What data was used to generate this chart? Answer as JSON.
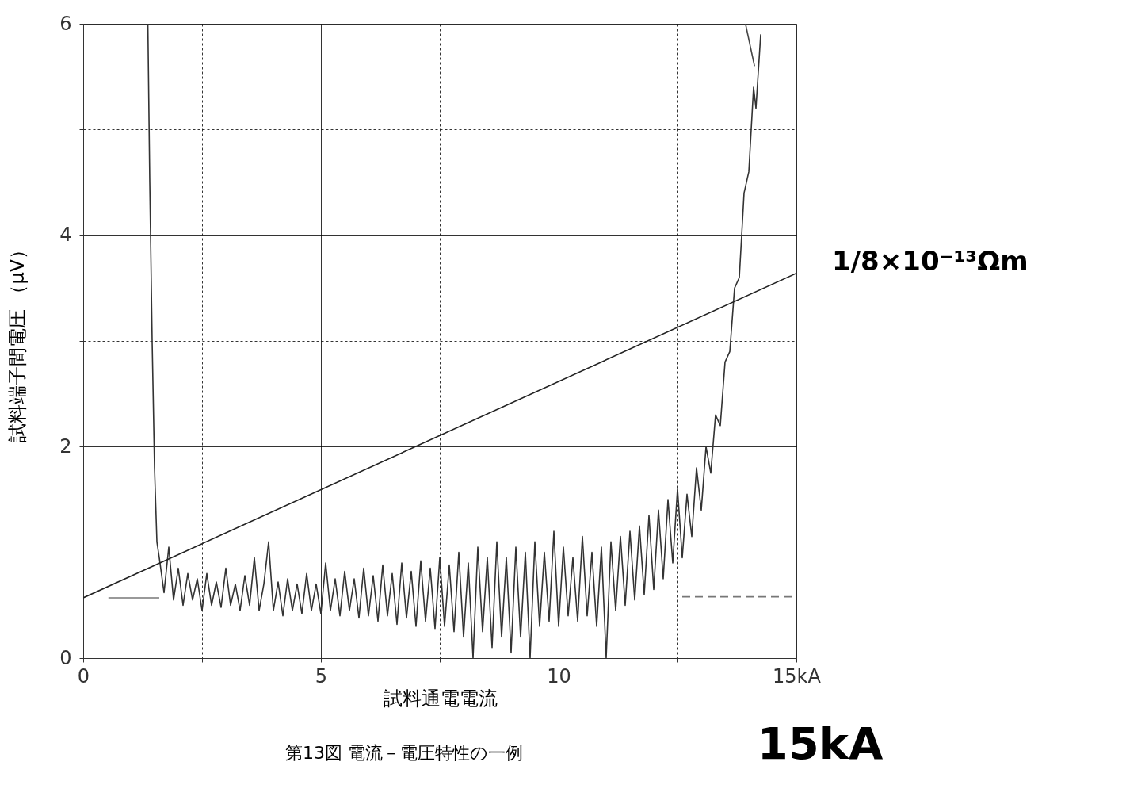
{
  "chart_data": {
    "type": "line",
    "xlabel": "試料通電電流",
    "ylabel": "試料端子間電圧 （μV）",
    "xlim": [
      0,
      15
    ],
    "ylim": [
      0,
      6
    ],
    "xticks": [
      0,
      {
        "value": 2.5,
        "label": null
      },
      5,
      {
        "value": 7.5,
        "label": null
      },
      10,
      {
        "value": 12.5,
        "label": null
      },
      {
        "value": 15,
        "label": "15kA"
      }
    ],
    "yticks": [
      0,
      {
        "value": 1,
        "label": null
      },
      2,
      {
        "value": 3,
        "label": null
      },
      4,
      {
        "value": 5,
        "label": null
      },
      6
    ],
    "grid": true,
    "marker": "none",
    "series": [
      {
        "color": "#333333",
        "line_style": "solid",
        "x": [
          1.36,
          1.4,
          1.45,
          1.5,
          1.55,
          1.6,
          1.7,
          1.8,
          1.9,
          2.0,
          2.1,
          2.2,
          2.3,
          2.4,
          2.5,
          2.6,
          2.7,
          2.8,
          2.9,
          3.0,
          3.1,
          3.2,
          3.3,
          3.4,
          3.5,
          3.6,
          3.7,
          3.8,
          3.9,
          4.0,
          4.1,
          4.2,
          4.3,
          4.4,
          4.5,
          4.6,
          4.7,
          4.8,
          4.9,
          5.0,
          5.1,
          5.2,
          5.3,
          5.4,
          5.5,
          5.6,
          5.7,
          5.8,
          5.9,
          6.0,
          6.1,
          6.2,
          6.3,
          6.4,
          6.5,
          6.6,
          6.7,
          6.8,
          6.9,
          7.0,
          7.1,
          7.2,
          7.3,
          7.4,
          7.5,
          7.6,
          7.7,
          7.8,
          7.9,
          8.0,
          8.1,
          8.2,
          8.3,
          8.4,
          8.5,
          8.6,
          8.7,
          8.8,
          8.9,
          9.0,
          9.1,
          9.2,
          9.3,
          9.4,
          9.5,
          9.6,
          9.7,
          9.8,
          9.9,
          10.0,
          10.1,
          10.2,
          10.3,
          10.4,
          10.5,
          10.6,
          10.7,
          10.8,
          10.9,
          11.0,
          11.1,
          11.2,
          11.3,
          11.4,
          11.5,
          11.6,
          11.7,
          11.8,
          11.9,
          12.0,
          12.1,
          12.2,
          12.3,
          12.4,
          12.5,
          12.6,
          12.7,
          12.8,
          12.9,
          13.0,
          13.1,
          13.2,
          13.3,
          13.4,
          13.5,
          13.6,
          13.7,
          13.8,
          13.9,
          14.0,
          14.1,
          14.15,
          14.25
        ],
        "values": [
          6,
          4.5,
          3.0,
          1.8,
          1.1,
          0.95,
          0.62,
          1.05,
          0.55,
          0.85,
          0.5,
          0.8,
          0.55,
          0.75,
          0.45,
          0.8,
          0.5,
          0.72,
          0.48,
          0.85,
          0.5,
          0.7,
          0.45,
          0.78,
          0.5,
          0.95,
          0.45,
          0.7,
          1.1,
          0.45,
          0.72,
          0.4,
          0.75,
          0.45,
          0.7,
          0.42,
          0.8,
          0.45,
          0.7,
          0.42,
          0.9,
          0.45,
          0.75,
          0.4,
          0.82,
          0.45,
          0.75,
          0.38,
          0.85,
          0.4,
          0.78,
          0.35,
          0.88,
          0.4,
          0.8,
          0.32,
          0.9,
          0.38,
          0.82,
          0.3,
          0.92,
          0.35,
          0.85,
          0.28,
          0.95,
          0.3,
          0.88,
          0.25,
          1.0,
          0.2,
          0.9,
          0.0,
          1.05,
          0.25,
          0.95,
          0.1,
          1.1,
          0.2,
          0.95,
          0.05,
          1.05,
          0.2,
          1.0,
          0.0,
          1.1,
          0.3,
          1.0,
          0.35,
          1.2,
          0.3,
          1.05,
          0.4,
          0.95,
          0.35,
          1.15,
          0.4,
          1.0,
          0.3,
          1.05,
          0.0,
          1.1,
          0.45,
          1.15,
          0.5,
          1.2,
          0.55,
          1.25,
          0.6,
          1.35,
          0.65,
          1.4,
          0.75,
          1.5,
          0.9,
          1.6,
          0.95,
          1.55,
          1.15,
          1.8,
          1.4,
          2.0,
          1.75,
          2.3,
          2.2,
          2.8,
          2.9,
          3.5,
          3.6,
          4.4,
          4.6,
          5.4,
          5.2,
          5.9
        ]
      },
      {
        "color": "#444444",
        "line_style": "solid",
        "x": [
          13.93,
          14.12
        ],
        "values": [
          6,
          5.6
        ]
      },
      {
        "color": "#777777",
        "line_style": "solid",
        "x": [
          0.53,
          1.6
        ],
        "values": [
          0.57,
          0.57
        ]
      },
      {
        "color": "#777777",
        "line_style": "dashed",
        "x": [
          12.6,
          15
        ],
        "values": [
          0.58,
          0.58
        ]
      },
      {
        "color": "#222222",
        "line_style": "solid",
        "x": [
          0,
          15
        ],
        "values": [
          0.57,
          3.64
        ]
      }
    ],
    "annotations": [
      {
        "text": "1/8×10⁻¹³Ωm",
        "x": 15,
        "y": 3.64
      },
      "15kA",
      "第13図 電流－電圧特性の一例"
    ]
  }
}
